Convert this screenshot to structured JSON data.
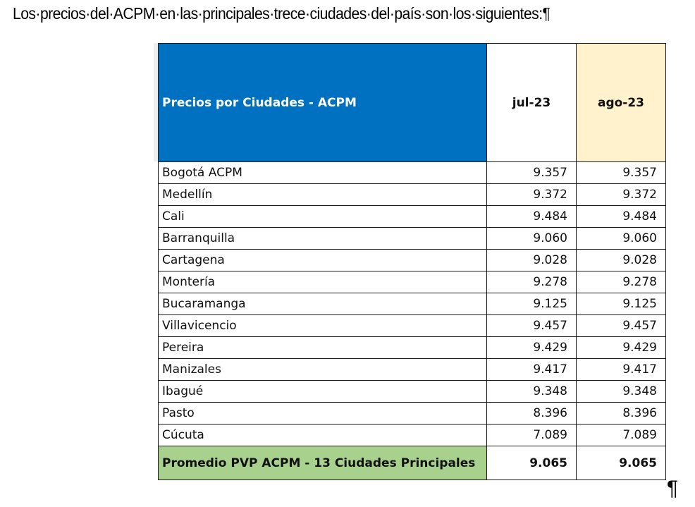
{
  "document": {
    "intro_text": "Los·precios·del·ACPM·en·las·principales·trece·ciudades·del·país·son·los·siguientes:¶",
    "trailing_mark": "¶"
  },
  "table": {
    "header": {
      "title": "Precios por Ciudades - ACPM",
      "col1": "jul-23",
      "col2": "ago-23"
    },
    "rows": [
      {
        "city": "Bogotá ACPM",
        "jul": "9.357",
        "ago": "9.357"
      },
      {
        "city": "Medellín",
        "jul": "9.372",
        "ago": "9.372"
      },
      {
        "city": "Cali",
        "jul": "9.484",
        "ago": "9.484"
      },
      {
        "city": "Barranquilla",
        "jul": "9.060",
        "ago": "9.060"
      },
      {
        "city": "Cartagena",
        "jul": "9.028",
        "ago": "9.028"
      },
      {
        "city": "Montería",
        "jul": "9.278",
        "ago": "9.278"
      },
      {
        "city": "Bucaramanga",
        "jul": "9.125",
        "ago": "9.125"
      },
      {
        "city": "Villavicencio",
        "jul": "9.457",
        "ago": "9.457"
      },
      {
        "city": "Pereira",
        "jul": "9.429",
        "ago": "9.429"
      },
      {
        "city": "Manizales",
        "jul": "9.417",
        "ago": "9.417"
      },
      {
        "city": "Ibagué",
        "jul": "9.348",
        "ago": "9.348"
      },
      {
        "city": "Pasto",
        "jul": "8.396",
        "ago": "8.396"
      },
      {
        "city": "Cúcuta",
        "jul": "7.089",
        "ago": "7.089"
      }
    ],
    "total": {
      "label": "Promedio PVP ACPM - 13 Ciudades Principales",
      "jul": "9.065",
      "ago": "9.065"
    }
  },
  "colors": {
    "header_blue": "#0070c0",
    "ago_header_fill": "#fff2cc",
    "total_green": "#a9d18e"
  }
}
